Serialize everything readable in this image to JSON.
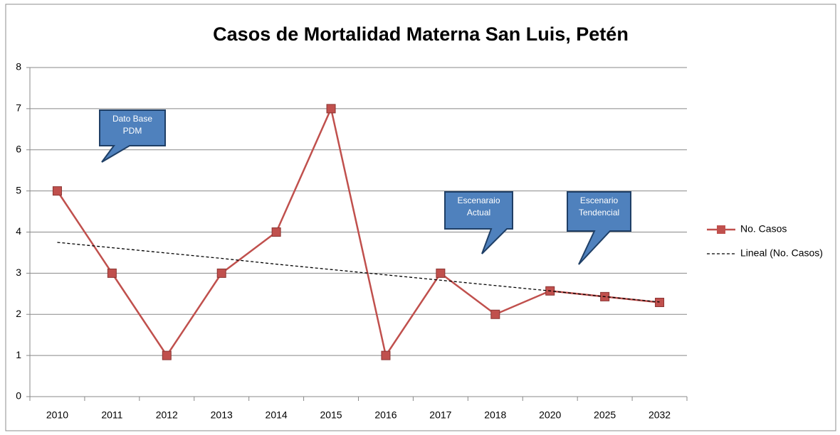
{
  "chart_data": {
    "type": "line",
    "title": "Casos de Mortalidad Materna San Luis, Petén",
    "categories": [
      "2010",
      "2011",
      "2012",
      "2013",
      "2014",
      "2015",
      "2016",
      "2017",
      "2018",
      "2020",
      "2025",
      "2032"
    ],
    "series": [
      {
        "name": "No. Casos",
        "color": "#c0504d",
        "marker": "square",
        "values": [
          5,
          3,
          1,
          3,
          4,
          7,
          1,
          3,
          2,
          2.57,
          2.43,
          2.29
        ]
      },
      {
        "name": "Lineal (No. Casos)",
        "color": "#000000",
        "dashed": true,
        "values": [
          3.75,
          3.62,
          3.49,
          3.36,
          3.22,
          3.09,
          2.96,
          2.83,
          2.7,
          2.57,
          2.43,
          2.3
        ]
      }
    ],
    "ylim": [
      0,
      8
    ],
    "yticks": [
      0,
      1,
      2,
      3,
      4,
      5,
      6,
      7,
      8
    ],
    "grid": true,
    "legend": "right",
    "annotations": [
      {
        "lines": [
          "Dato Base",
          "PDM"
        ]
      },
      {
        "lines": [
          "Escenaraio",
          "Actual"
        ]
      },
      {
        "lines": [
          "Escenario",
          "Tendencial"
        ]
      }
    ]
  }
}
